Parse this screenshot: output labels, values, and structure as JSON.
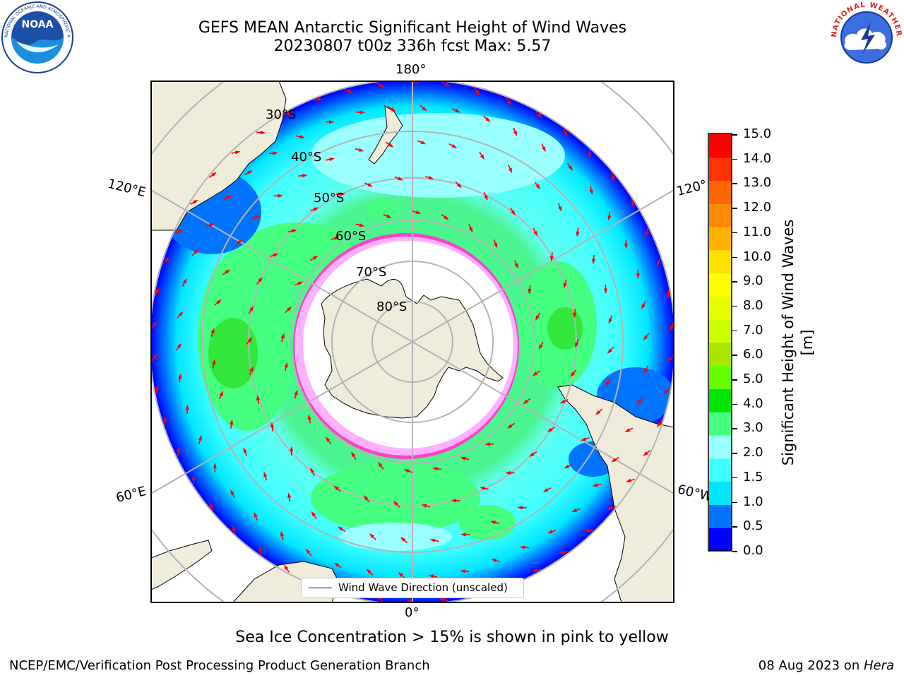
{
  "title": {
    "line1": "GEFS MEAN Antarctic Significant Height of Wind Waves",
    "line2": "20230807 t00z 336h fcst   Max: 5.57"
  },
  "logos": {
    "left": "NOAA",
    "left_ring": "NATIONAL OCEANIC AND ATMOSPHERIC ADMINISTRATION · U.S. DEPARTMENT OF COMMERCE",
    "right_ring": "NATIONAL WEATHER SERVICE"
  },
  "map": {
    "projection": "south polar stereographic",
    "lon_labels": [
      "180°",
      "120°E",
      "120°",
      "60°E",
      "60°W",
      "0°"
    ],
    "lat_labels": [
      "30°S",
      "40°S",
      "50°S",
      "60°S",
      "70°S",
      "80°S"
    ],
    "legend_label": "Wind Wave Direction (unscaled)",
    "colors": {
      "land": "#efecdc",
      "ice_edge": "#ff40c8",
      "vector": "#ff0000"
    }
  },
  "colorbar": {
    "label": "Significant Height of Wind Waves [m]",
    "ticks": [
      "15.0",
      "14.0",
      "13.0",
      "12.0",
      "11.0",
      "10.0",
      "9.0",
      "8.0",
      "7.0",
      "6.0",
      "5.0",
      "4.0",
      "3.0",
      "2.0",
      "1.5",
      "1.0",
      "0.5",
      "0.0"
    ],
    "colors": [
      "#0000ff",
      "#0073ff",
      "#00e6ff",
      "#40ffff",
      "#99ffff",
      "#45ff80",
      "#00e600",
      "#66ff00",
      "#a8e600",
      "#ccff00",
      "#e6ff00",
      "#ffff00",
      "#ffe000",
      "#ffb300",
      "#ff8a00",
      "#ff6600",
      "#ff3300",
      "#ff0000"
    ]
  },
  "note": "Sea Ice Concentration > 15% is shown in pink to yellow",
  "footer": {
    "left": "NCEP/EMC/Verification Post Processing Product Generation Branch",
    "date": "08 Aug 2023 on ",
    "machine": "Hera"
  }
}
